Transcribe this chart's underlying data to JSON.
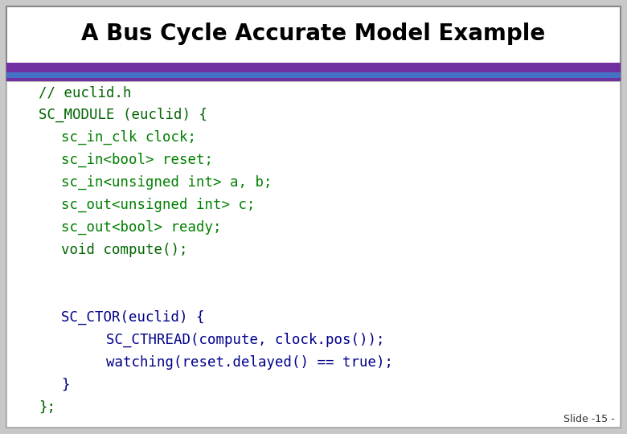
{
  "title": "A Bus Cycle Accurate Model Example",
  "title_fontsize": 20,
  "title_color": "#000000",
  "slide_bg": "#c8c8c8",
  "slide_number": "Slide -15 -",
  "bar_purple": "#7030a0",
  "bar_blue": "#4472c4",
  "code_lines": [
    {
      "text": "// euclid.h",
      "color": "#006400",
      "indent": 0
    },
    {
      "text": "SC_MODULE (euclid) {",
      "color": "#006400",
      "indent": 0
    },
    {
      "text": "sc_in_clk clock;",
      "color": "#008000",
      "indent": 1
    },
    {
      "text": "sc_in<bool> reset;",
      "color": "#008000",
      "indent": 1
    },
    {
      "text": "sc_in<unsigned int> a, b;",
      "color": "#008000",
      "indent": 1
    },
    {
      "text": "sc_out<unsigned int> c;",
      "color": "#008000",
      "indent": 1
    },
    {
      "text": "sc_out<bool> ready;",
      "color": "#008000",
      "indent": 1
    },
    {
      "text": "void compute();",
      "color": "#006400",
      "indent": 1
    },
    {
      "text": "",
      "color": "#000000",
      "indent": 0
    },
    {
      "text": "",
      "color": "#000000",
      "indent": 0
    },
    {
      "text": "SC_CTOR(euclid) {",
      "color": "#00008b",
      "indent": 1
    },
    {
      "text": "SC_CTHREAD(compute, clock.pos());",
      "color": "#00008b",
      "indent": 2
    },
    {
      "text": "watching(reset.delayed() == true);",
      "color": "#00008b",
      "indent": 2
    },
    {
      "text": "}",
      "color": "#00008b",
      "indent": 1
    },
    {
      "text": "};",
      "color": "#006400",
      "indent": 0
    }
  ]
}
